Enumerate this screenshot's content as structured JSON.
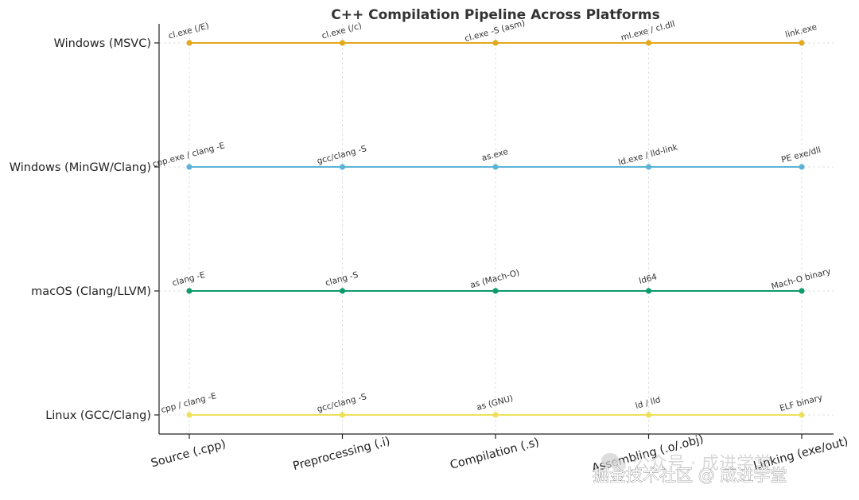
{
  "chart_data": {
    "type": "line",
    "title": "C++ Compilation Pipeline Across Platforms",
    "xlabel": "",
    "ylabel": "",
    "categories": [
      "Source (.cpp)",
      "Preprocessing (.i)",
      "Compilation (.s)",
      "Assembling (.o/.obj)",
      "Linking (exe/out)"
    ],
    "grid": true,
    "legend": "none",
    "series": [
      {
        "name": "Windows (MSVC)",
        "color": "#E3A81C",
        "values": [
          3,
          3,
          3,
          3,
          3
        ],
        "labels": [
          "cl.exe (/E)",
          "cl.exe (/c)",
          "cl.exe -S (asm)",
          "ml.exe / cl.dll",
          "link.exe"
        ]
      },
      {
        "name": "Windows (MinGW/Clang)",
        "color": "#5BB3D6",
        "values": [
          2,
          2,
          2,
          2,
          2
        ],
        "labels": [
          "cpp.exe / clang -E",
          "gcc/clang -S",
          "as.exe",
          "ld.exe / lld-link",
          "PE exe/dll"
        ]
      },
      {
        "name": "macOS (Clang/LLVM)",
        "color": "#0E9A6A",
        "values": [
          1,
          1,
          1,
          1,
          1
        ],
        "labels": [
          "clang -E",
          "clang -S",
          "as (Mach-O)",
          "ld64",
          "Mach-O binary"
        ]
      },
      {
        "name": "Linux (GCC/Clang)",
        "color": "#EEE05A",
        "values": [
          0,
          0,
          0,
          0,
          0
        ],
        "labels": [
          "cpp / clang -E",
          "gcc/clang -S",
          "as (GNU)",
          "ld / lld",
          "ELF binary"
        ]
      }
    ]
  },
  "watermark": {
    "faint": "公众号 · 成进学堂",
    "text": "掘金技术社区 @ 成进学堂",
    "icon": "wechat-icon"
  }
}
